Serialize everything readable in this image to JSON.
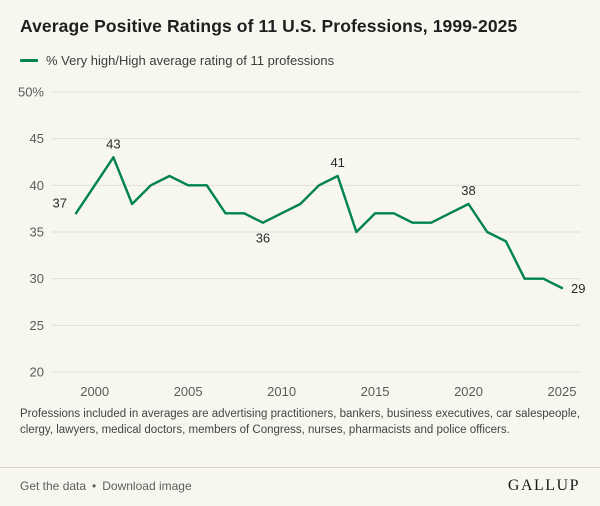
{
  "title": "Average Positive Ratings of 11 U.S. Professions, 1999-2025",
  "legend": {
    "label": "% Very high/High average rating of 11 professions"
  },
  "colors": {
    "line": "#00834c",
    "grid": "#e2e0d6",
    "background": "#f7f6ef",
    "tick_text": "#5b5b5b",
    "label_text": "#2b2b2b"
  },
  "chart_data": {
    "type": "line",
    "title": "Average Positive Ratings of 11 U.S. Professions, 1999-2025",
    "x": [
      1999,
      2000,
      2001,
      2002,
      2003,
      2004,
      2005,
      2006,
      2007,
      2008,
      2009,
      2010,
      2011,
      2012,
      2013,
      2014,
      2015,
      2016,
      2017,
      2018,
      2019,
      2020,
      2021,
      2022,
      2023,
      2024,
      2025
    ],
    "series": [
      {
        "name": "% Very high/High average rating of 11 professions",
        "values": [
          37,
          40,
          43,
          38,
          40,
          41,
          40,
          40,
          37,
          37,
          36,
          37,
          38,
          40,
          41,
          35,
          37,
          37,
          36,
          36,
          37,
          38,
          35,
          34,
          30,
          30,
          29
        ]
      }
    ],
    "ylim": [
      20,
      50
    ],
    "yticks": [
      20,
      25,
      30,
      35,
      40,
      45,
      50
    ],
    "ytick_top_suffix": "%",
    "xticks": [
      2000,
      2005,
      2010,
      2015,
      2020,
      2025
    ],
    "grid": "horizontal",
    "legend_position": "top-left",
    "annotations": [
      {
        "year": 1999,
        "value": 37,
        "position": "left"
      },
      {
        "year": 2001,
        "value": 43,
        "position": "above"
      },
      {
        "year": 2009,
        "value": 36,
        "position": "below"
      },
      {
        "year": 2013,
        "value": 41,
        "position": "above"
      },
      {
        "year": 2020,
        "value": 38,
        "position": "above"
      },
      {
        "year": 2025,
        "value": 29,
        "position": "right"
      }
    ]
  },
  "footnote": "Professions included in averages are advertising practitioners, bankers, business executives, car salespeople, clergy, lawyers, medical doctors, members of Congress, nurses, pharmacists and police officers.",
  "footer": {
    "links": [
      {
        "label": "Get the data"
      },
      {
        "label": "Download image"
      }
    ],
    "separator": "•",
    "brand": "GALLUP"
  }
}
